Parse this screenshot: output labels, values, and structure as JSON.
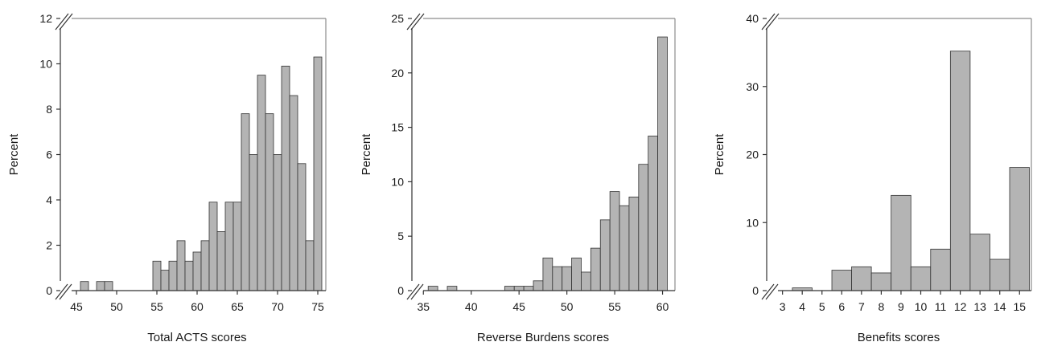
{
  "colors": {
    "bar_fill": "#b4b4b4",
    "bar_stroke": "#333333",
    "axis": "#333333",
    "frame": "#8c8c8c"
  },
  "chart_data": [
    {
      "type": "bar",
      "xlabel": "Total ACTS scores",
      "ylabel": "Percent",
      "xlim": [
        43,
        76
      ],
      "ylim": [
        0,
        12
      ],
      "x_ticks": [
        45,
        50,
        55,
        60,
        65,
        70,
        75
      ],
      "y_ticks": [
        0,
        2,
        4,
        6,
        8,
        10,
        12
      ],
      "axis_break": true,
      "bin_width": 1,
      "x": [
        46,
        48,
        49,
        55,
        56,
        57,
        58,
        59,
        60,
        61,
        62,
        63,
        64,
        65,
        66,
        67,
        68,
        69,
        70,
        71,
        72,
        73,
        74,
        75
      ],
      "values": [
        0.4,
        0.4,
        0.4,
        1.3,
        0.9,
        1.3,
        2.2,
        1.3,
        1.7,
        2.2,
        3.9,
        2.6,
        3.9,
        3.9,
        7.8,
        6.0,
        9.5,
        7.8,
        6.0,
        9.9,
        8.6,
        5.6,
        2.2,
        10.3
      ]
    },
    {
      "type": "bar",
      "xlabel": "Reverse Burdens scores",
      "ylabel": "Percent",
      "xlim": [
        33.8,
        61.3
      ],
      "ylim": [
        0,
        25
      ],
      "x_ticks": [
        35,
        40,
        45,
        50,
        55,
        60
      ],
      "y_ticks": [
        0,
        5,
        10,
        15,
        20,
        25
      ],
      "axis_break": true,
      "bin_width": 1,
      "x": [
        36,
        38,
        44,
        45,
        46,
        47,
        48,
        49,
        50,
        51,
        52,
        53,
        54,
        55,
        56,
        57,
        58,
        59,
        60
      ],
      "values": [
        0.4,
        0.4,
        0.4,
        0.4,
        0.4,
        0.9,
        3.0,
        2.2,
        2.2,
        3.0,
        1.7,
        3.9,
        6.5,
        9.1,
        7.8,
        8.6,
        11.6,
        14.2,
        23.3
      ]
    },
    {
      "type": "bar",
      "xlabel": "Benefits scores",
      "ylabel": "Percent",
      "xlim": [
        2.2,
        15.6
      ],
      "ylim": [
        0,
        40
      ],
      "x_ticks": [
        3,
        4,
        5,
        6,
        7,
        8,
        9,
        10,
        11,
        12,
        13,
        14,
        15
      ],
      "y_ticks": [
        0,
        10,
        20,
        30,
        40
      ],
      "axis_break": true,
      "bin_width": 1,
      "x": [
        4,
        6,
        7,
        8,
        9,
        10,
        11,
        12,
        13,
        14,
        15
      ],
      "values": [
        0.4,
        3.0,
        3.5,
        2.6,
        14.0,
        3.5,
        6.1,
        35.2,
        8.3,
        4.6,
        18.1
      ]
    }
  ]
}
